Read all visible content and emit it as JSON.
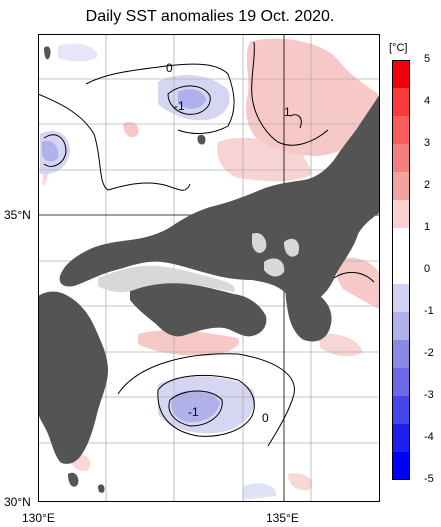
{
  "title": "Daily SST anomalies 19 Oct. 2020.",
  "colorbar": {
    "unit": "[°C]",
    "ticks": [
      "5",
      "4",
      "3",
      "2",
      "1",
      "0",
      "-1",
      "-2",
      "-3",
      "-4",
      "-5"
    ],
    "colors": [
      "#f3000e",
      "#f83a3a",
      "#f85c5c",
      "#f37f7f",
      "#f3a1a1",
      "#f9cfcf",
      "#ffffff",
      "#ffffff",
      "#d1d1f1",
      "#b0b0ea",
      "#8a8ae6",
      "#6a6ae6",
      "#4545ea",
      "#1e1ef0",
      "#0000ff"
    ]
  },
  "axes": {
    "lat_labels": [
      "35°N",
      "30°N"
    ],
    "lon_labels": [
      "130°E",
      "135°E"
    ]
  },
  "contour_labels": [
    "0",
    "-1",
    "1",
    "-1",
    "0"
  ],
  "colors": {
    "land": "#545454",
    "lake_or_ice": "#d8d8d8",
    "warm_anomaly": "#f6c8c8",
    "cool_anomaly": "#d6d6f3",
    "grid": "#b0b0b0"
  }
}
